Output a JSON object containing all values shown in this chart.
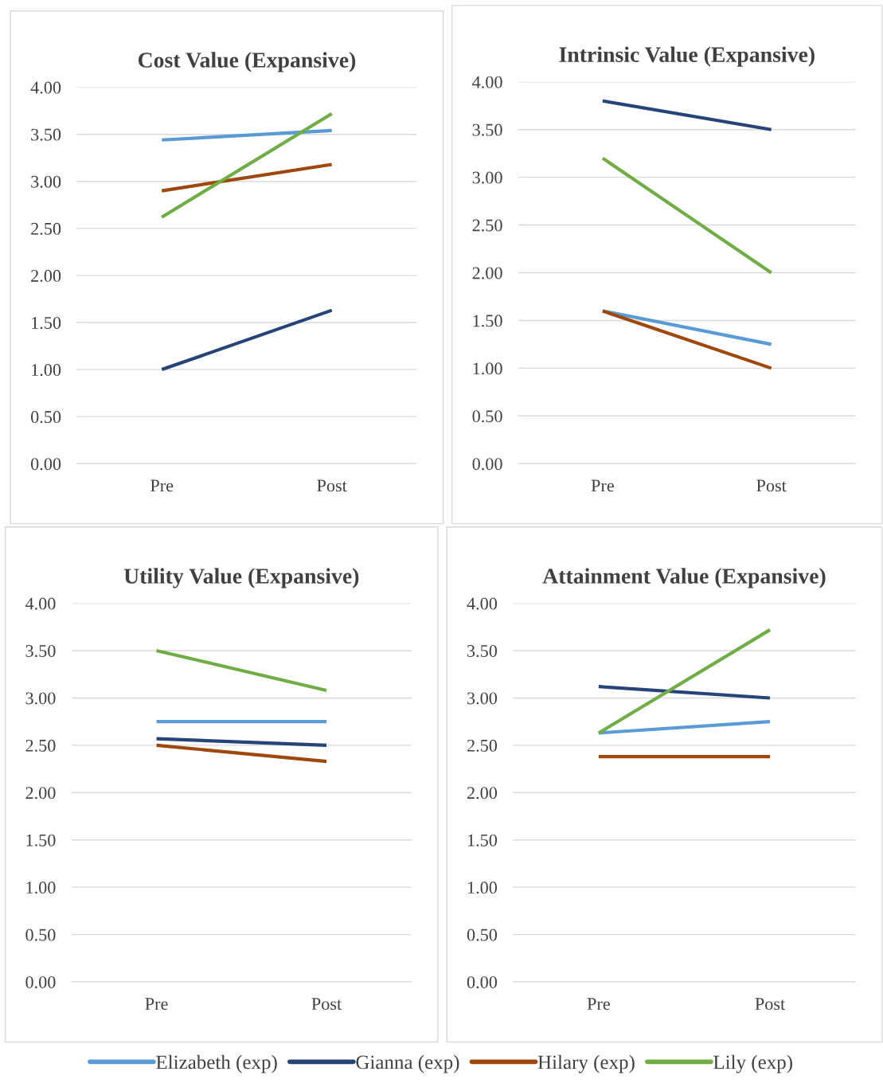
{
  "chart_data": [
    {
      "type": "line",
      "title": "Cost Value (Expansive)",
      "categories": [
        "Pre",
        "Post"
      ],
      "ylim": [
        0,
        4
      ],
      "yticks": [
        {
          "value": 0,
          "label": "0.00"
        },
        {
          "value": 0.5,
          "label": "0.50"
        },
        {
          "value": 1,
          "label": "1.00"
        },
        {
          "value": 1.5,
          "label": "1.50"
        },
        {
          "value": 2,
          "label": "2.00"
        },
        {
          "value": 2.5,
          "label": "2.50"
        },
        {
          "value": 3,
          "label": "3.00"
        },
        {
          "value": 3.5,
          "label": "3.50"
        },
        {
          "value": 4,
          "label": "4.00"
        }
      ],
      "grid": "y",
      "legend": "bottom",
      "marker": "none",
      "line_style": "solid",
      "series": [
        {
          "name": "Elizabeth (exp)",
          "color": "#5b9bd5",
          "values": [
            3.44,
            3.54
          ]
        },
        {
          "name": "Gianna (exp)",
          "color": "#264478",
          "values": [
            1.0,
            1.63
          ]
        },
        {
          "name": "Hilary (exp)",
          "color": "#9e480e",
          "values": [
            2.9,
            3.18
          ]
        },
        {
          "name": "Lily (exp)",
          "color": "#70ad47",
          "values": [
            2.62,
            3.72
          ]
        }
      ]
    },
    {
      "type": "line",
      "title": "Intrinsic Value (Expansive)",
      "categories": [
        "Pre",
        "Post"
      ],
      "ylim": [
        0,
        4
      ],
      "yticks": [
        {
          "value": 0,
          "label": "0.00"
        },
        {
          "value": 0.5,
          "label": "0.50"
        },
        {
          "value": 1,
          "label": "1.00"
        },
        {
          "value": 1.5,
          "label": "1.50"
        },
        {
          "value": 2,
          "label": "2.00"
        },
        {
          "value": 2.5,
          "label": "2.50"
        },
        {
          "value": 3,
          "label": "3.00"
        },
        {
          "value": 3.5,
          "label": "3.50"
        },
        {
          "value": 4,
          "label": "4.00"
        }
      ],
      "grid": "y",
      "marker": "none",
      "line_style": "solid",
      "series": [
        {
          "color": "#5b9bd5",
          "values": [
            1.6,
            1.25
          ]
        },
        {
          "color": "#264478",
          "values": [
            3.8,
            3.5
          ]
        },
        {
          "color": "#9e480e",
          "values": [
            1.6,
            1.0
          ]
        },
        {
          "color": "#70ad47",
          "values": [
            3.2,
            2.0
          ]
        }
      ]
    },
    {
      "type": "line",
      "title": "Utility Value (Expansive)",
      "categories": [
        "Pre",
        "Post"
      ],
      "ylim": [
        0,
        4
      ],
      "yticks": [
        {
          "value": 0,
          "label": "0.00"
        },
        {
          "value": 0.5,
          "label": "0.50"
        },
        {
          "value": 1,
          "label": "1.00"
        },
        {
          "value": 1.5,
          "label": "1.50"
        },
        {
          "value": 2,
          "label": "2.00"
        },
        {
          "value": 2.5,
          "label": "2.50"
        },
        {
          "value": 3,
          "label": "3.00"
        },
        {
          "value": 3.5,
          "label": "3.50"
        },
        {
          "value": 4,
          "label": "4.00"
        }
      ],
      "grid": "y",
      "marker": "none",
      "line_style": "solid",
      "series": [
        {
          "color": "#5b9bd5",
          "values": [
            2.75,
            2.75
          ]
        },
        {
          "color": "#264478",
          "values": [
            2.57,
            2.5
          ]
        },
        {
          "color": "#9e480e",
          "values": [
            2.5,
            2.33
          ]
        },
        {
          "color": "#70ad47",
          "values": [
            3.5,
            3.08
          ]
        }
      ]
    },
    {
      "type": "line",
      "title": "Attainment Value (Expansive)",
      "categories": [
        "Pre",
        "Post"
      ],
      "ylim": [
        0,
        4
      ],
      "yticks": [
        {
          "value": 0,
          "label": "0.00"
        },
        {
          "value": 0.5,
          "label": "0.50"
        },
        {
          "value": 1,
          "label": "1.00"
        },
        {
          "value": 1.5,
          "label": "1.50"
        },
        {
          "value": 2,
          "label": "2.00"
        },
        {
          "value": 2.5,
          "label": "2.50"
        },
        {
          "value": 3,
          "label": "3.00"
        },
        {
          "value": 3.5,
          "label": "3.50"
        },
        {
          "value": 4,
          "label": "4.00"
        }
      ],
      "grid": "y",
      "marker": "none",
      "line_style": "solid",
      "series": [
        {
          "color": "#5b9bd5",
          "values": [
            2.63,
            2.75
          ]
        },
        {
          "color": "#264478",
          "values": [
            3.12,
            3.0
          ]
        },
        {
          "color": "#9e480e",
          "values": [
            2.38,
            2.38
          ]
        },
        {
          "color": "#70ad47",
          "values": [
            2.63,
            3.72
          ]
        }
      ]
    }
  ]
}
